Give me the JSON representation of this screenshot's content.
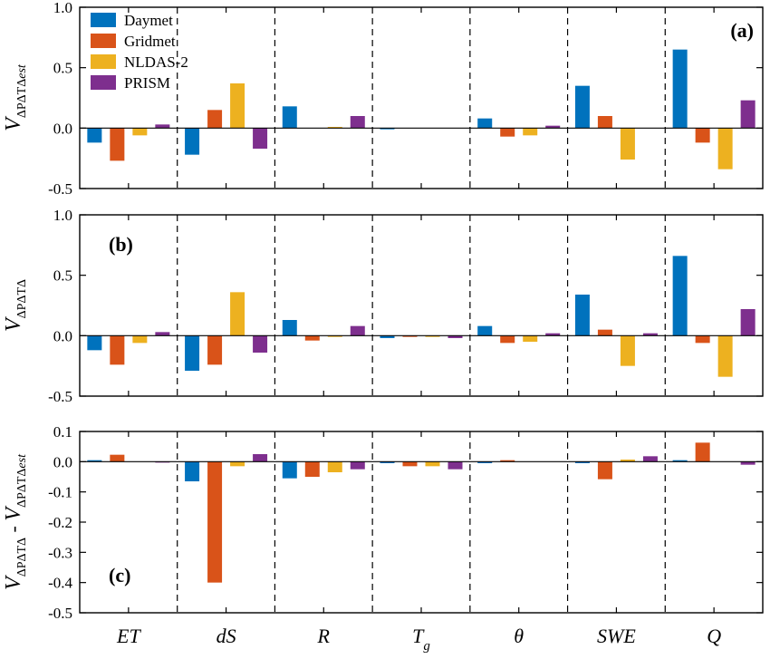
{
  "chart_data": {
    "type": "bar",
    "categories": [
      "ET",
      "dS",
      "R",
      "T",
      "θ",
      "SWE",
      "Q"
    ],
    "category_subscripts": [
      "",
      "",
      "",
      "g",
      "",
      "",
      ""
    ],
    "series_names": [
      "Daymet",
      "Gridmet",
      "NLDAS-2",
      "PRISM"
    ],
    "colors": {
      "Daymet": "#0072BD",
      "Gridmet": "#D95319",
      "NLDAS-2": "#EDB120",
      "PRISM": "#7E2F8E"
    },
    "legend_position": "top-left",
    "panels": [
      {
        "label": "(a)",
        "label_position": "top-right",
        "ylabel": {
          "main": "V",
          "sub": "ΔPΔTΔ",
          "sub_italic": "est"
        },
        "ylim": [
          -0.5,
          1.0
        ],
        "yticks": [
          "1.0",
          "0.5",
          "0.0",
          "-0.5"
        ],
        "ytick_values": [
          1.0,
          0.5,
          0.0,
          -0.5
        ],
        "series": [
          {
            "name": "Daymet",
            "values": [
              -0.12,
              -0.22,
              0.18,
              -0.01,
              0.08,
              0.35,
              0.65
            ]
          },
          {
            "name": "Gridmet",
            "values": [
              -0.27,
              0.15,
              0.0,
              0.0,
              -0.07,
              0.1,
              -0.12
            ]
          },
          {
            "name": "NLDAS-2",
            "values": [
              -0.06,
              0.37,
              0.01,
              0.0,
              -0.06,
              -0.26,
              -0.34
            ]
          },
          {
            "name": "PRISM",
            "values": [
              0.03,
              -0.17,
              0.1,
              0.0,
              0.02,
              0.0,
              0.23
            ]
          }
        ]
      },
      {
        "label": "(b)",
        "label_position": "top-left",
        "ylabel": {
          "main": "V",
          "sub": "ΔPΔTΔ",
          "sub_italic": ""
        },
        "ylim": [
          -0.5,
          1.0
        ],
        "yticks": [
          "1.0",
          "0.5",
          "0.0",
          "-0.5"
        ],
        "ytick_values": [
          1.0,
          0.5,
          0.0,
          -0.5
        ],
        "series": [
          {
            "name": "Daymet",
            "values": [
              -0.12,
              -0.29,
              0.13,
              -0.02,
              0.08,
              0.34,
              0.66
            ]
          },
          {
            "name": "Gridmet",
            "values": [
              -0.24,
              -0.24,
              -0.04,
              -0.01,
              -0.06,
              0.05,
              -0.06
            ]
          },
          {
            "name": "NLDAS-2",
            "values": [
              -0.06,
              0.36,
              -0.01,
              -0.01,
              -0.05,
              -0.25,
              -0.34
            ]
          },
          {
            "name": "PRISM",
            "values": [
              0.03,
              -0.14,
              0.08,
              -0.02,
              0.02,
              0.02,
              0.22
            ]
          }
        ]
      },
      {
        "label": "(c)",
        "label_position": "bottom-left",
        "ylabel": {
          "main": "V",
          "sub": "ΔPΔTΔ",
          "sub_italic": "",
          "minus_main": "V",
          "minus_sub": "ΔPΔTΔ",
          "minus_sub_italic": "est"
        },
        "ylim": [
          -0.5,
          0.1
        ],
        "yticks": [
          "0.1",
          "0.0",
          "-0.1",
          "-0.2",
          "-0.3",
          "-0.4",
          "-0.5"
        ],
        "ytick_values": [
          0.1,
          0.0,
          -0.1,
          -0.2,
          -0.3,
          -0.4,
          -0.5
        ],
        "series": [
          {
            "name": "Daymet",
            "values": [
              0.005,
              -0.065,
              -0.055,
              -0.005,
              -0.005,
              -0.005,
              0.005
            ]
          },
          {
            "name": "Gridmet",
            "values": [
              0.023,
              -0.4,
              -0.05,
              -0.015,
              0.005,
              -0.058,
              0.063
            ]
          },
          {
            "name": "NLDAS-2",
            "values": [
              0.0,
              -0.015,
              -0.035,
              -0.015,
              0.0,
              0.007,
              0.0
            ]
          },
          {
            "name": "PRISM",
            "values": [
              -0.003,
              0.025,
              -0.025,
              -0.025,
              0.0,
              0.018,
              -0.01
            ]
          }
        ]
      }
    ]
  }
}
